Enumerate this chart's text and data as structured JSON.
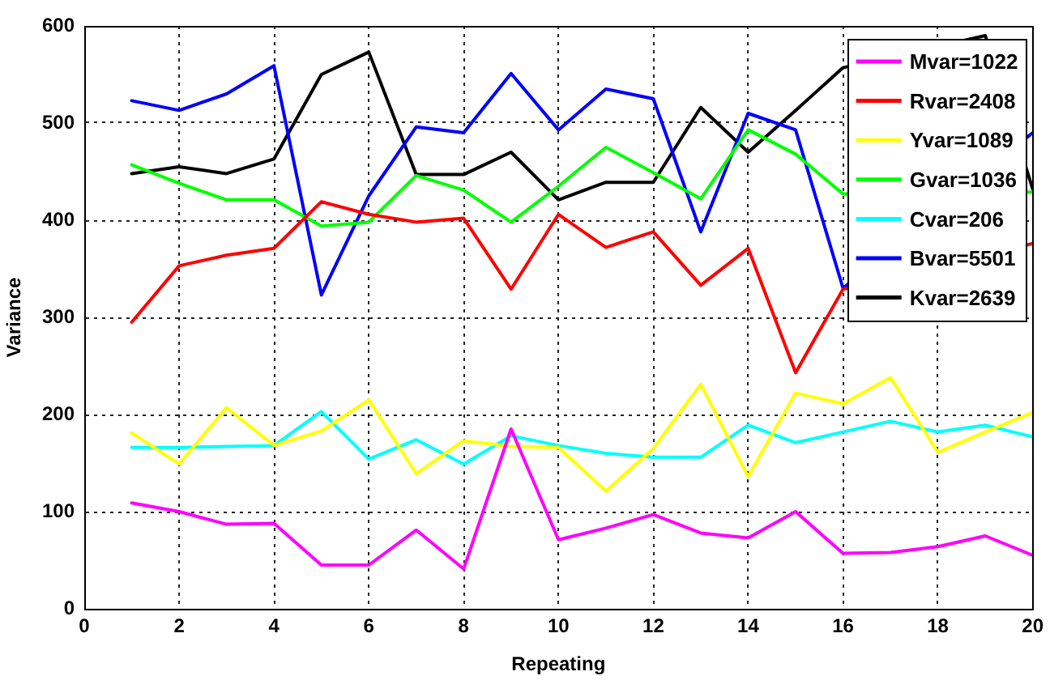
{
  "chart_data": {
    "type": "line",
    "xlabel": "Repeating",
    "ylabel": "Variance",
    "x": [
      1,
      2,
      3,
      4,
      5,
      6,
      7,
      8,
      9,
      10,
      11,
      12,
      13,
      14,
      15,
      16,
      17,
      18,
      19,
      20
    ],
    "xlim": [
      0,
      20
    ],
    "xticks": [
      0,
      2,
      4,
      6,
      8,
      10,
      12,
      14,
      16,
      18,
      20
    ],
    "ylim": [
      0,
      600
    ],
    "yticks": [
      0,
      100,
      200,
      300,
      400,
      500,
      600
    ],
    "grid": true,
    "legend": "top right",
    "line_style": "solid",
    "series": [
      {
        "name": "Mvar=1022",
        "color": "#ff00ff",
        "values": [
          109,
          100,
          87,
          88,
          45,
          45,
          81,
          41,
          185,
          71,
          83,
          97,
          78,
          73,
          100,
          57,
          58,
          64,
          75,
          55
        ]
      },
      {
        "name": "Rvar=2408",
        "color": "#ff0000",
        "values": [
          295,
          353,
          364,
          371,
          419,
          406,
          398,
          402,
          329,
          406,
          372,
          388,
          333,
          371,
          243,
          329,
          null,
          null,
          null,
          376
        ]
      },
      {
        "name": "Yvar=1089",
        "color": "#ffff00",
        "values": [
          181,
          149,
          207,
          168,
          183,
          215,
          139,
          173,
          167,
          166,
          121,
          165,
          231,
          136,
          222,
          211,
          238,
          161,
          182,
          202
        ]
      },
      {
        "name": "Gvar=1036",
        "color": "#00ff00",
        "values": [
          457,
          438,
          421,
          421,
          394,
          398,
          446,
          431,
          398,
          435,
          475,
          449,
          422,
          493,
          468,
          427,
          null,
          null,
          null,
          429
        ]
      },
      {
        "name": "Cvar=206",
        "color": "#00ffff",
        "values": [
          166,
          166,
          167,
          168,
          203,
          154,
          174,
          149,
          178,
          168,
          160,
          156,
          156,
          189,
          171,
          182,
          193,
          182,
          189,
          177
        ]
      },
      {
        "name": "Bvar=5501",
        "color": "#0000ff",
        "values": [
          523,
          513,
          530,
          559,
          323,
          425,
          496,
          490,
          551,
          493,
          535,
          525,
          388,
          510,
          493,
          330,
          null,
          null,
          null,
          490
        ]
      },
      {
        "name": "Kvar=2639",
        "color": "#000000",
        "values": [
          448,
          455,
          448,
          463,
          550,
          573,
          447,
          447,
          470,
          421,
          439,
          439,
          516,
          470,
          513,
          557,
          null,
          null,
          590,
          432
        ]
      }
    ]
  }
}
